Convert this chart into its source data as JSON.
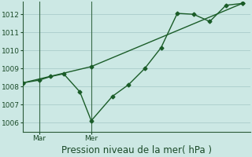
{
  "title": "",
  "xlabel": "Pression niveau de la mer( hPa )",
  "bg_color": "#cce8e4",
  "grid_color": "#aaccca",
  "line_color": "#1a5c28",
  "vline_color": "#3a6a48",
  "ylim": [
    1005.5,
    1012.7
  ],
  "yticks": [
    1006,
    1007,
    1008,
    1009,
    1010,
    1011,
    1012
  ],
  "xlim": [
    0,
    14
  ],
  "vline_x": [
    1.0,
    4.2
  ],
  "xtick_positions": [
    1.0,
    4.2
  ],
  "xtick_labels": [
    "Mar",
    "Mer"
  ],
  "line1_x": [
    0.0,
    1.0,
    1.7,
    2.5,
    3.5,
    4.2,
    5.5,
    6.5,
    7.5,
    8.5,
    9.5,
    10.5,
    11.5,
    12.5,
    13.5
  ],
  "line1_y": [
    1008.2,
    1008.35,
    1008.55,
    1008.7,
    1007.7,
    1006.1,
    1007.45,
    1008.1,
    1009.0,
    1010.15,
    1012.05,
    1012.0,
    1011.6,
    1012.5,
    1012.6
  ],
  "line2_x": [
    0.0,
    4.2,
    13.5
  ],
  "line2_y": [
    1008.2,
    1009.1,
    1012.6
  ],
  "marker_style": "D",
  "marker_size": 2.5,
  "line_width": 1.0,
  "tick_fontsize": 6.5,
  "xlabel_fontsize": 8.5
}
